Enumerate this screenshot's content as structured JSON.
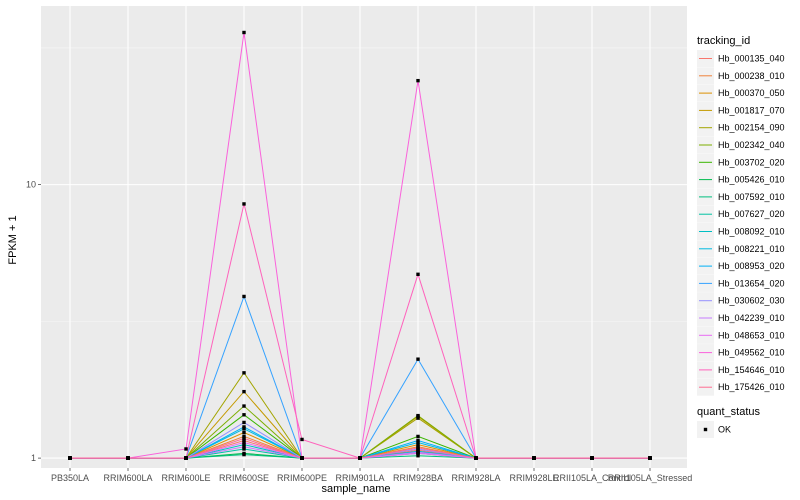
{
  "chart_data": {
    "type": "line",
    "xlabel": "sample_name",
    "ylabel": "FPKM + 1",
    "y_scale": "log10",
    "ylim": [
      0.92,
      45
    ],
    "y_ticks": [
      {
        "value": 1,
        "label": "1"
      },
      {
        "value": 10,
        "label": "10"
      }
    ],
    "grid": true,
    "legend_position": "right",
    "categories": [
      "PB350LA",
      "RRIM600LA",
      "RRIM600LE",
      "RRIM600SE",
      "RRIM600PE",
      "RRIM901LA",
      "RRIM928BA",
      "RRIM928LA",
      "RRIM928LE",
      "RRII105LA_Control",
      "RRII105LA_Stressed"
    ],
    "legend_color": {
      "title": "tracking_id",
      "entries": [
        {
          "name": "Hb_000135_040",
          "color": "#F8766D"
        },
        {
          "name": "Hb_000238_010",
          "color": "#F0823A"
        },
        {
          "name": "Hb_000370_050",
          "color": "#DC9000"
        },
        {
          "name": "Hb_001817_070",
          "color": "#C49A00"
        },
        {
          "name": "Hb_002154_090",
          "color": "#A3A500"
        },
        {
          "name": "Hb_002342_040",
          "color": "#7CAE00"
        },
        {
          "name": "Hb_003702_020",
          "color": "#39B600"
        },
        {
          "name": "Hb_005426_010",
          "color": "#00BB4E"
        },
        {
          "name": "Hb_007592_010",
          "color": "#00BF7D"
        },
        {
          "name": "Hb_007627_020",
          "color": "#00C1A3"
        },
        {
          "name": "Hb_008092_010",
          "color": "#00BFC4"
        },
        {
          "name": "Hb_008221_010",
          "color": "#00BAE0"
        },
        {
          "name": "Hb_008953_020",
          "color": "#00B0F6"
        },
        {
          "name": "Hb_013654_020",
          "color": "#35A2FF"
        },
        {
          "name": "Hb_030602_030",
          "color": "#9590FF"
        },
        {
          "name": "Hb_042239_010",
          "color": "#C77CFF"
        },
        {
          "name": "Hb_048653_010",
          "color": "#E76BF3"
        },
        {
          "name": "Hb_049562_010",
          "color": "#FA62DB"
        },
        {
          "name": "Hb_154646_010",
          "color": "#FF62BC"
        },
        {
          "name": "Hb_175426_010",
          "color": "#FF6C91"
        }
      ]
    },
    "legend_shape": {
      "title": "quant_status",
      "entries": [
        {
          "name": "OK"
        }
      ]
    },
    "series": [
      {
        "name": "Hb_000135_040",
        "values": [
          1,
          1,
          1,
          1.16,
          1,
          1,
          1.07,
          1,
          1,
          1,
          1
        ]
      },
      {
        "name": "Hb_000238_010",
        "values": [
          1,
          1,
          1,
          1.2,
          1,
          1,
          1.1,
          1,
          1,
          1,
          1
        ]
      },
      {
        "name": "Hb_000370_050",
        "values": [
          1,
          1,
          1,
          1.24,
          1,
          1,
          1.12,
          1,
          1,
          1,
          1
        ]
      },
      {
        "name": "Hb_001817_070",
        "values": [
          1,
          1,
          1,
          1.75,
          1,
          1,
          1.42,
          1,
          1,
          1,
          1
        ]
      },
      {
        "name": "Hb_002154_090",
        "values": [
          1,
          1,
          1,
          2.05,
          1,
          1,
          1.4,
          1,
          1,
          1,
          1
        ]
      },
      {
        "name": "Hb_002342_040",
        "values": [
          1,
          1,
          1,
          1.55,
          1,
          1,
          1.43,
          1,
          1,
          1,
          1
        ]
      },
      {
        "name": "Hb_003702_020",
        "values": [
          1,
          1,
          1,
          1.44,
          1,
          1,
          1.2,
          1,
          1,
          1,
          1
        ]
      },
      {
        "name": "Hb_005426_010",
        "values": [
          1,
          1,
          1,
          1.04,
          1,
          1,
          1.05,
          1,
          1,
          1,
          1
        ]
      },
      {
        "name": "Hb_007592_010",
        "values": [
          1,
          1,
          1,
          1.03,
          1,
          1,
          1.02,
          1,
          1,
          1,
          1
        ]
      },
      {
        "name": "Hb_007627_020",
        "values": [
          1,
          1,
          1,
          1.08,
          1,
          1,
          1.04,
          1,
          1,
          1,
          1
        ]
      },
      {
        "name": "Hb_008092_010",
        "values": [
          1,
          1,
          1,
          1.12,
          1,
          1,
          1.06,
          1,
          1,
          1,
          1
        ]
      },
      {
        "name": "Hb_008221_010",
        "values": [
          1,
          1,
          1,
          1.28,
          1,
          1,
          1.14,
          1,
          1,
          1,
          1
        ]
      },
      {
        "name": "Hb_008953_020",
        "values": [
          1,
          1,
          1,
          1.3,
          1,
          1,
          1.16,
          1,
          1,
          1,
          1
        ]
      },
      {
        "name": "Hb_013654_020",
        "values": [
          1,
          1,
          1,
          3.9,
          1,
          1,
          2.3,
          1,
          1,
          1,
          1
        ]
      },
      {
        "name": "Hb_030602_030",
        "values": [
          1,
          1,
          1,
          1.35,
          1,
          1,
          1.08,
          1,
          1,
          1,
          1
        ]
      },
      {
        "name": "Hb_042239_010",
        "values": [
          1,
          1,
          1,
          1.1,
          1,
          1,
          1.05,
          1,
          1,
          1,
          1
        ]
      },
      {
        "name": "Hb_048653_010",
        "values": [
          1,
          1,
          1,
          1.14,
          1,
          1,
          1.04,
          1,
          1,
          1,
          1
        ]
      },
      {
        "name": "Hb_049562_010",
        "values": [
          1,
          1,
          1.08,
          36,
          1,
          1,
          24,
          1,
          1,
          1,
          1
        ]
      },
      {
        "name": "Hb_154646_010",
        "values": [
          1,
          1,
          1,
          8.5,
          1.17,
          1,
          4.7,
          1,
          1,
          1,
          1
        ]
      },
      {
        "name": "Hb_175426_010",
        "values": [
          1,
          1,
          1,
          1.18,
          1,
          1,
          1.09,
          1,
          1,
          1,
          1
        ]
      }
    ]
  }
}
